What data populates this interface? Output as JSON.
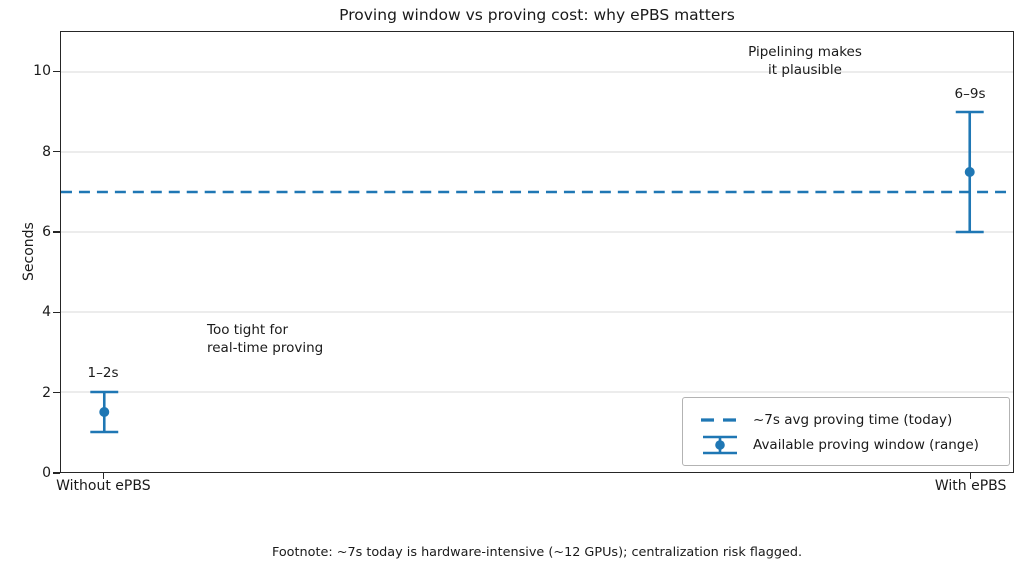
{
  "figure": {
    "footnote": "Footnote: ~7s today is hardware-intensive (~12 GPUs); centralization risk flagged."
  },
  "chart_data": {
    "type": "scatter",
    "title": "Proving window vs proving cost: why ePBS matters",
    "xlabel": "",
    "ylabel": "Seconds",
    "categories": [
      "Without ePBS",
      "With ePBS"
    ],
    "ylim": [
      0,
      11
    ],
    "yticks": [
      0,
      2,
      4,
      6,
      8,
      10
    ],
    "grid": "horizontal",
    "points": [
      {
        "category": "Without ePBS",
        "center": 1.5,
        "low": 1.0,
        "high": 2.0,
        "range_label": "1–2s"
      },
      {
        "category": "With ePBS",
        "center": 7.5,
        "low": 6.0,
        "high": 9.0,
        "range_label": "6–9s"
      }
    ],
    "reference_line": {
      "value": 7,
      "style": "dashed"
    },
    "legend": {
      "position": "lower right",
      "entries": [
        {
          "symbol": "dashed-line",
          "label": "~7s avg proving time (today)"
        },
        {
          "symbol": "errorbar",
          "label": "Available proving window (range)"
        }
      ]
    },
    "annotations": [
      {
        "text": "Too tight for\nreal-time proving",
        "align": "left"
      },
      {
        "text": "Pipelining makes\nit plausible",
        "align": "center"
      }
    ],
    "colors": {
      "accent": "#1f77b4",
      "grid": "#d9d9d9",
      "text": "#1a1a1a"
    }
  }
}
